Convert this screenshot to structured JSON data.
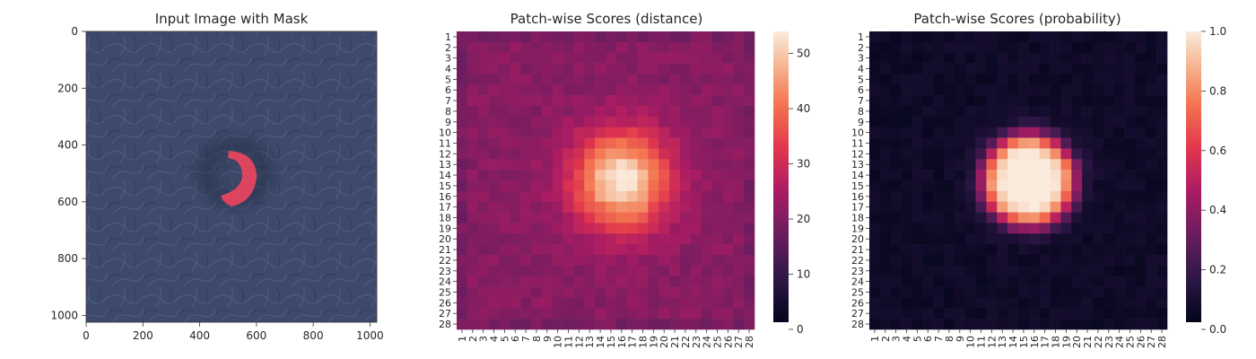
{
  "chart_data": [
    {
      "type": "image",
      "title": "Input Image with Mask",
      "x_ticks": [
        0,
        200,
        400,
        600,
        800,
        1000
      ],
      "y_ticks": [
        0,
        200,
        400,
        600,
        800,
        1000
      ],
      "xlim": [
        0,
        1024
      ],
      "ylim": [
        1024,
        0
      ],
      "mask": {
        "description": "red crescent-shaped defect mask",
        "center": [
          520,
          500
        ],
        "color": "#f0455f"
      },
      "background_color": "#3d4a6b"
    },
    {
      "type": "heatmap",
      "title": "Patch-wise Scores (distance)",
      "rows": 28,
      "cols": 28,
      "tick_labels": [
        "1",
        "2",
        "3",
        "4",
        "5",
        "6",
        "7",
        "8",
        "9",
        "10",
        "11",
        "12",
        "13",
        "14",
        "15",
        "16",
        "17",
        "18",
        "19",
        "20",
        "21",
        "22",
        "23",
        "24",
        "25",
        "26",
        "27",
        "28"
      ],
      "colorbar": {
        "ticks": [
          0,
          10,
          20,
          30,
          40,
          50
        ],
        "range": [
          0,
          54
        ]
      },
      "background_level": 20,
      "hotspot": {
        "center_col": 16,
        "center_row": 14.5,
        "peak": 54,
        "spread": 3.2
      },
      "grid": false
    },
    {
      "type": "heatmap",
      "title": "Patch-wise Scores (probability)",
      "rows": 28,
      "cols": 28,
      "tick_labels": [
        "1",
        "2",
        "3",
        "4",
        "5",
        "6",
        "7",
        "8",
        "9",
        "10",
        "11",
        "12",
        "13",
        "14",
        "15",
        "16",
        "17",
        "18",
        "19",
        "20",
        "21",
        "22",
        "23",
        "24",
        "25",
        "26",
        "27",
        "28"
      ],
      "colorbar": {
        "ticks": [
          "0.0",
          "0.2",
          "0.4",
          "0.6",
          "0.8",
          "1.0"
        ],
        "range": [
          0,
          1
        ]
      },
      "background_level": 0.02,
      "hotspot": {
        "center_col": 15.5,
        "center_row": 14.5,
        "peak": 1.0,
        "spread": 4.2
      },
      "grid": false
    }
  ]
}
